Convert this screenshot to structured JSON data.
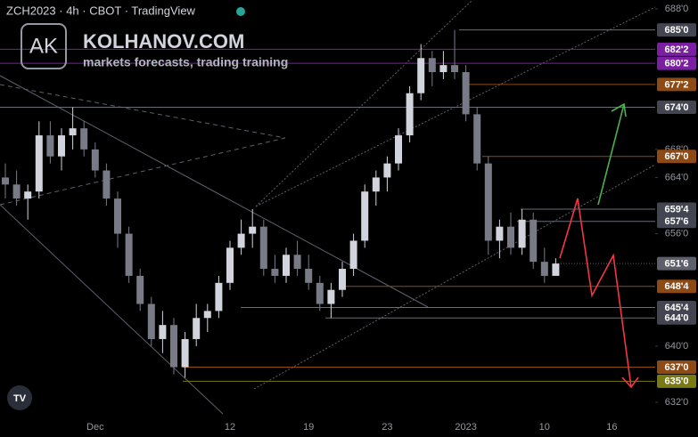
{
  "watermark": {
    "logo": "AK",
    "name": "KOLHANOV.COM",
    "tagline": "markets forecasts, trading training"
  },
  "chart_data": {
    "type": "candlestick",
    "title": "ZCH2023 · 4h · CBOT · TradingView",
    "categories": [
      null,
      null,
      null,
      null,
      null,
      null,
      null,
      null,
      "Dec",
      null,
      null,
      null,
      null,
      null,
      null,
      null,
      null,
      null,
      null,
      null,
      "12",
      null,
      null,
      null,
      null,
      null,
      null,
      "19",
      null,
      null,
      null,
      null,
      null,
      null,
      "23",
      null,
      null,
      null,
      null,
      null,
      null,
      "2023",
      null,
      null,
      null,
      null,
      null,
      null,
      "10",
      null,
      null,
      null,
      null,
      null,
      "16",
      null
    ],
    "open": [
      664,
      663,
      661,
      662,
      670,
      667,
      670,
      671,
      668,
      665,
      661,
      656,
      650,
      646,
      641,
      643,
      637,
      641,
      644,
      645,
      649,
      654,
      656,
      657,
      651,
      650,
      653,
      651,
      649,
      646,
      648,
      651,
      655,
      662,
      664,
      666,
      670,
      676,
      681,
      679,
      680,
      679,
      673,
      666,
      655,
      657,
      654,
      658,
      652,
      650,
      null,
      null,
      null,
      null,
      null,
      null
    ],
    "high": [
      666,
      665,
      663,
      672,
      672,
      671,
      674,
      672,
      669,
      666,
      662,
      657,
      651,
      647,
      645,
      644,
      642,
      646,
      646,
      650,
      655,
      658,
      659.5,
      658,
      653,
      654,
      655,
      653,
      650,
      649,
      652,
      656,
      663,
      665,
      667,
      671,
      677,
      683,
      682,
      682,
      685,
      680,
      674,
      667,
      658,
      659,
      659.5,
      659,
      654,
      652.5,
      null,
      null,
      null,
      null,
      null,
      null
    ],
    "low": [
      661,
      660,
      658,
      661,
      666,
      665,
      668,
      667,
      664,
      660,
      654,
      649,
      645,
      640,
      639,
      636,
      635.5,
      640,
      642,
      644,
      648,
      653,
      654,
      650,
      649,
      649,
      650,
      648,
      645,
      644,
      647,
      650,
      654,
      660,
      662,
      665,
      669,
      675,
      677,
      678,
      678,
      672,
      665,
      653,
      652.5,
      653,
      653,
      651,
      649,
      650,
      null,
      null,
      null,
      null,
      null,
      null
    ],
    "close": [
      663,
      661,
      662,
      670,
      667,
      670,
      671,
      668,
      665,
      661,
      656,
      650,
      646,
      641,
      643,
      637,
      641,
      644,
      645,
      649,
      654,
      656,
      657,
      651,
      650,
      653,
      651,
      649,
      646,
      648,
      651,
      655,
      662,
      664,
      666,
      670,
      676,
      681,
      679,
      680,
      679,
      673,
      666,
      655,
      657,
      654,
      658,
      652,
      650,
      651.75,
      null,
      null,
      null,
      null,
      null,
      null
    ],
    "up_color": "#d1d4dc",
    "down_color": "#787b86",
    "ylim": [
      632,
      688
    ],
    "yticks": [
      {
        "value": 688,
        "label": "688'0"
      },
      {
        "value": 668,
        "label": "668'0"
      },
      {
        "value": 664,
        "label": "664'0"
      },
      {
        "value": 656,
        "label": "656'0"
      },
      {
        "value": 640,
        "label": "640'0"
      },
      {
        "value": 632,
        "label": "632'0"
      }
    ],
    "grid": false,
    "levels": [
      {
        "value": 685,
        "label": "685'0",
        "color": "#434651"
      },
      {
        "value": 682.25,
        "label": "682'2",
        "color": "#7b1fa2"
      },
      {
        "value": 680.25,
        "label": "680'2",
        "color": "#7b1fa2"
      },
      {
        "value": 677.25,
        "label": "677'2",
        "color": "#8d4a14"
      },
      {
        "value": 674,
        "label": "674'0",
        "color": "#434651"
      },
      {
        "value": 667,
        "label": "667'0",
        "color": "#8d4a14"
      },
      {
        "value": 659.5,
        "label": "659'4",
        "color": "#434651"
      },
      {
        "value": 657.75,
        "label": "657'6",
        "color": "#434651"
      },
      {
        "value": 651.75,
        "label": "651'6",
        "color": "#5d606b"
      },
      {
        "value": 648.5,
        "label": "648'4",
        "color": "#8d4a14"
      },
      {
        "value": 645.5,
        "label": "645'4",
        "color": "#434651"
      },
      {
        "value": 644,
        "label": "644'0",
        "color": "#434651"
      },
      {
        "value": 637,
        "label": "637'0",
        "color": "#8d4a14"
      },
      {
        "value": 635,
        "label": "635'0",
        "color": "#7a7a14"
      }
    ]
  }
}
